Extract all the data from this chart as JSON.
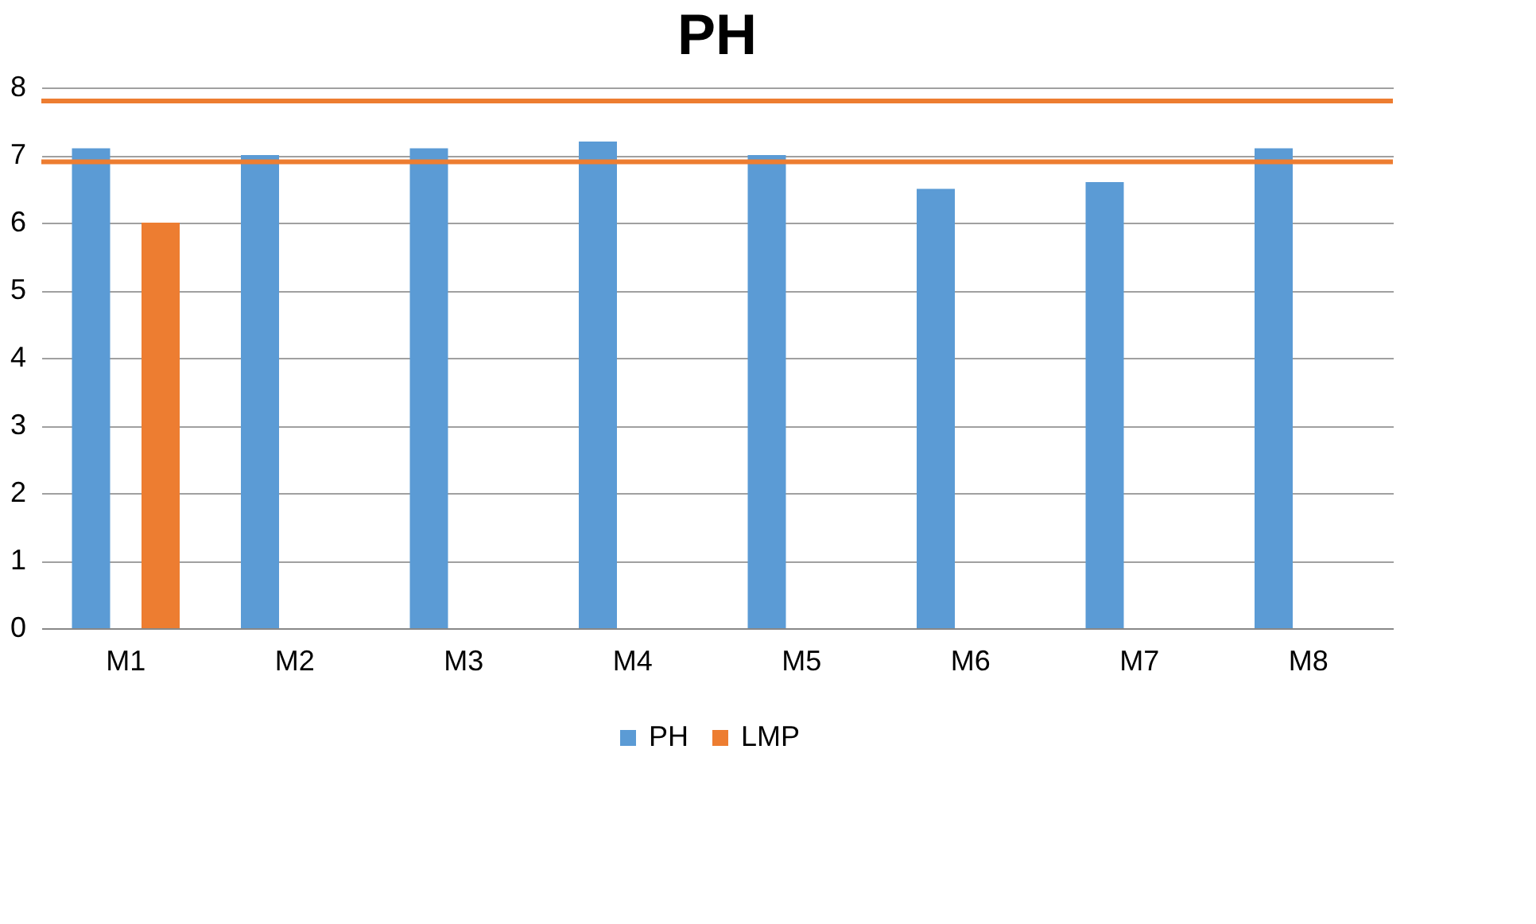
{
  "chart_data": {
    "type": "bar",
    "title": "PH",
    "categories": [
      "M1",
      "M2",
      "M3",
      "M4",
      "M5",
      "M6",
      "M7",
      "M8"
    ],
    "series": [
      {
        "name": "PH",
        "color": "#5b9bd5",
        "values": [
          7.1,
          7.0,
          7.1,
          7.2,
          7.0,
          6.5,
          6.6,
          7.1
        ]
      },
      {
        "name": "LMP",
        "color": "#ed7d31",
        "values": [
          6,
          null,
          null,
          null,
          null,
          null,
          null,
          null
        ]
      }
    ],
    "ylim": [
      0,
      8
    ],
    "yticks": [
      0,
      1,
      2,
      3,
      4,
      5,
      6,
      7,
      8
    ],
    "grid": "y",
    "legend": "bottom",
    "ref_lines": [
      {
        "axis": "y",
        "value": 7.8,
        "color": "#ed7d31"
      },
      {
        "axis": "y",
        "value": 6.9,
        "color": "#ed7d31"
      }
    ]
  }
}
